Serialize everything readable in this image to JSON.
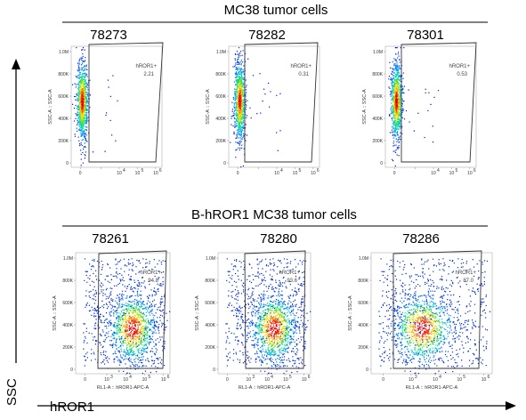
{
  "sections": [
    {
      "title": "MC38 tumor cells"
    },
    {
      "title": "B-hROR1 MC38 tumor cells"
    }
  ],
  "axes": {
    "big_x": "hROR1",
    "big_y": "SSC",
    "y_ticks": [
      "1.0M",
      "800K",
      "600K",
      "400K",
      "200K",
      "0"
    ],
    "x_ticks": [
      "0",
      "10",
      "10",
      "10",
      "10"
    ],
    "x_tick_exps": [
      "",
      "3",
      "4",
      "5",
      "6"
    ],
    "x_tick_exps_top": [
      "",
      "",
      "4",
      "5",
      "6"
    ],
    "y_title": "SSC-A :: SSC-A",
    "x_title": "RL1-A :: hROR1-APC-A"
  },
  "chart_data": [
    {
      "type": "scatter",
      "sample": "78273",
      "gate": "hROR1+",
      "percent": "2.21",
      "group": "MC38 tumor cells",
      "ylim": [
        0,
        1050000
      ]
    },
    {
      "type": "scatter",
      "sample": "78282",
      "gate": "hROR1+",
      "percent": "0.31",
      "group": "MC38 tumor cells",
      "ylim": [
        0,
        1050000
      ]
    },
    {
      "type": "scatter",
      "sample": "78301",
      "gate": "hROR1+",
      "percent": "0.53",
      "group": "MC38 tumor cells",
      "ylim": [
        0,
        1050000
      ]
    },
    {
      "type": "scatter",
      "sample": "78261",
      "gate": "hROR1+",
      "percent": "94.8",
      "group": "B-hROR1 MC38 tumor cells",
      "ylim": [
        0,
        1050000
      ]
    },
    {
      "type": "scatter",
      "sample": "78280",
      "gate": "hROR1+",
      "percent": "93.6",
      "group": "B-hROR1 MC38 tumor cells",
      "ylim": [
        0,
        1050000
      ]
    },
    {
      "type": "scatter",
      "sample": "78286",
      "gate": "hROR1+",
      "percent": "87.0",
      "group": "B-hROR1 MC38 tumor cells",
      "ylim": [
        0,
        1050000
      ]
    }
  ]
}
